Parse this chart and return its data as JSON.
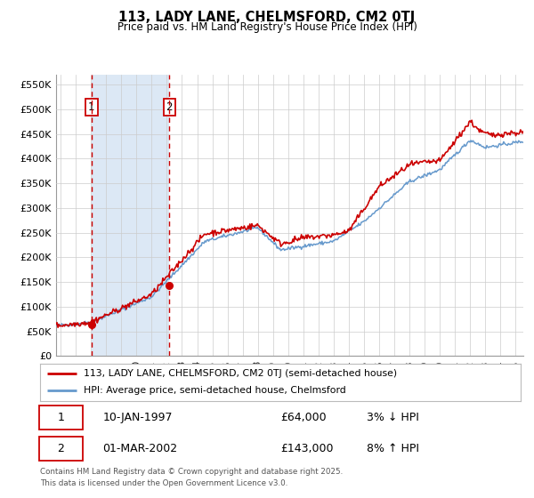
{
  "title": "113, LADY LANE, CHELMSFORD, CM2 0TJ",
  "subtitle": "Price paid vs. HM Land Registry's House Price Index (HPI)",
  "legend_line1": "113, LADY LANE, CHELMSFORD, CM2 0TJ (semi-detached house)",
  "legend_line2": "HPI: Average price, semi-detached house, Chelmsford",
  "transaction1_date": "10-JAN-1997",
  "transaction1_price": "£64,000",
  "transaction1_hpi": "3% ↓ HPI",
  "transaction1_year": 1997.04,
  "transaction1_value": 64000,
  "transaction2_date": "01-MAR-2002",
  "transaction2_price": "£143,000",
  "transaction2_hpi": "8% ↑ HPI",
  "transaction2_year": 2002.17,
  "transaction2_value": 143000,
  "ylabel_ticks": [
    "£0",
    "£50K",
    "£100K",
    "£150K",
    "£200K",
    "£250K",
    "£300K",
    "£350K",
    "£400K",
    "£450K",
    "£500K",
    "£550K"
  ],
  "ytick_values": [
    0,
    50000,
    100000,
    150000,
    200000,
    250000,
    300000,
    350000,
    400000,
    450000,
    500000,
    550000
  ],
  "price_color": "#cc0000",
  "hpi_color": "#6699cc",
  "shade_color": "#dce8f5",
  "background_color": "#ffffff",
  "grid_color": "#cccccc",
  "footer_text": "Contains HM Land Registry data © Crown copyright and database right 2025.\nThis data is licensed under the Open Government Licence v3.0.",
  "xmin": 1994.7,
  "xmax": 2025.5,
  "ymin": 0,
  "ymax": 570000
}
